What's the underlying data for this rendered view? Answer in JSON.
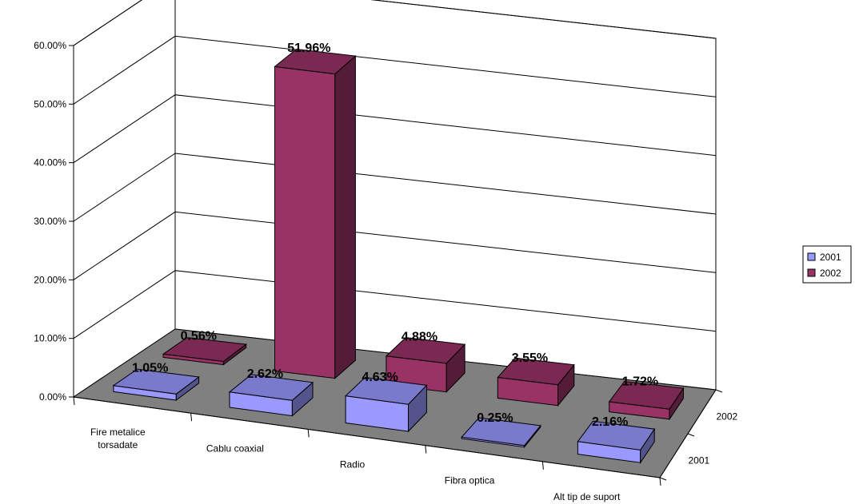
{
  "chart_data": {
    "type": "bar",
    "title": "",
    "xlabel": "",
    "ylabel": "",
    "categories": [
      "Fire metalice torsadate",
      "Cablu coaxial",
      "Radio",
      "Fibra optica",
      "Alt tip de suport"
    ],
    "category_labels": [
      [
        "Fire metalice",
        "torsadate"
      ],
      [
        "Cablu coaxial"
      ],
      [
        "Radio"
      ],
      [
        "Fibra optica"
      ],
      [
        "Alt tip de suport"
      ]
    ],
    "series": [
      {
        "name": "2001",
        "values": [
          1.05,
          2.62,
          4.63,
          0.25,
          2.16
        ],
        "labels": [
          "1.05%",
          "2.62%",
          "4.63%",
          "0.25%",
          "2.16%"
        ],
        "color": "#9999ff"
      },
      {
        "name": "2002",
        "values": [
          0.56,
          51.96,
          4.88,
          3.55,
          1.72
        ],
        "labels": [
          "0.56%",
          "51.96%",
          "4.88%",
          "3.55%",
          "1.72%"
        ],
        "color": "#993366"
      }
    ],
    "ylim": [
      0,
      60
    ],
    "yticks": [
      0,
      10,
      20,
      30,
      40,
      50,
      60
    ],
    "ytick_labels": [
      "0.00%",
      "10.00%",
      "20.00%",
      "30.00%",
      "40.00%",
      "50.00%",
      "60.00%"
    ],
    "depth_labels": [
      "2002",
      "2001"
    ],
    "grid": true,
    "legend": "right",
    "floor_color": "#808080"
  }
}
